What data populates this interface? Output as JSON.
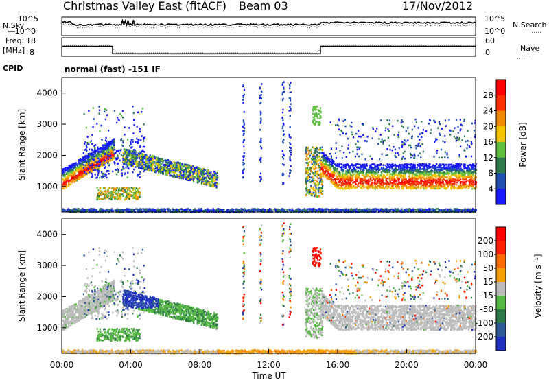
{
  "header": {
    "title": "Christmas Valley East (fitACF)",
    "beam": "Beam 03",
    "date": "17/Nov/2012"
  },
  "strip_panels": {
    "nsky_label": "N.Sky",
    "nsearch_label": "N.Search",
    "noise_ticks": [
      "10^5",
      "10^0"
    ],
    "freq_label_line1": "Freq.",
    "freq_label_line2": "[MHz]",
    "freq_ticks": [
      "18",
      "8"
    ],
    "nave_label": "Nave",
    "nave_ticks": [
      "60",
      "0"
    ],
    "cpid_label": "CPID",
    "cpid_text": "normal (fast) -151 IF"
  },
  "axes": {
    "time_ticks": [
      "00:00",
      "04:00",
      "08:00",
      "12:00",
      "16:00",
      "20:00",
      "00:00"
    ],
    "xlabel": "Time UT",
    "range_ticks": [
      "1000",
      "2000",
      "3000",
      "4000"
    ],
    "ylabel": "Slant Range [km]"
  },
  "colorbars": {
    "power": {
      "label": "Power [dB]",
      "ticks": [
        "4",
        "8",
        "12",
        "16",
        "20",
        "24",
        "28"
      ],
      "colors": [
        "#1a1aff",
        "#1f4fb0",
        "#2f7a4a",
        "#5fbf3f",
        "#f5c400",
        "#f08a00",
        "#ff3000",
        "#ff0000"
      ]
    },
    "velocity": {
      "label": "Velocity [m s⁻¹]",
      "ticks": [
        "200",
        "100",
        "50",
        "15",
        "-15",
        "-50",
        "-100",
        "-200"
      ],
      "colors": [
        "#2030c0",
        "#2f5a9a",
        "#2f7a4a",
        "#55b840",
        "#bcbcbc",
        "#f5a000",
        "#ff6a00",
        "#ff2000",
        "#ff0000"
      ]
    }
  },
  "chart_data": [
    {
      "type": "line",
      "panel": "noise",
      "series": [
        {
          "name": "N.Sky",
          "style": "solid"
        },
        {
          "name": "N.Search",
          "style": "dotted"
        }
      ],
      "scale": "log",
      "ylim_ticks": [
        "10^0",
        "10^5"
      ]
    },
    {
      "type": "line",
      "panel": "frequency",
      "series": [
        {
          "name": "Freq.",
          "style": "solid",
          "x_hours": [
            0,
            2.95,
            2.95,
            15.0,
            15.0,
            24
          ],
          "values_mhz": [
            14.5,
            14.5,
            10.5,
            10.5,
            14.5,
            14.5
          ]
        },
        {
          "name": "Nave",
          "style": "dotted"
        }
      ],
      "ylim": [
        8,
        18
      ]
    },
    {
      "type": "heatmap",
      "panel": "power",
      "xlabel": "Time UT",
      "ylabel": "Slant Range [km]",
      "xlim_hours": [
        0,
        24
      ],
      "ylim_km": [
        180,
        4500
      ],
      "colorbar_label": "Power [dB]",
      "regions": [
        {
          "t": [
            0.0,
            3.0
          ],
          "r": [
            900,
            2400
          ],
          "level": "strong"
        },
        {
          "t": [
            1.5,
            4.8
          ],
          "r": [
            1200,
            3800
          ],
          "level": "weak"
        },
        {
          "t": [
            4.5,
            9.0
          ],
          "r": [
            1000,
            2200
          ],
          "level": "medium"
        },
        {
          "t": [
            2.0,
            4.5
          ],
          "r": [
            600,
            1000
          ],
          "level": "medium"
        },
        {
          "t": [
            14.2,
            15.2
          ],
          "r": [
            700,
            3700
          ],
          "level": "medium"
        },
        {
          "t": [
            15.0,
            24.0
          ],
          "r": [
            900,
            1800
          ],
          "level": "strong"
        },
        {
          "t": [
            0.0,
            24.0
          ],
          "r": [
            200,
            300
          ],
          "level": "weak"
        }
      ]
    },
    {
      "type": "heatmap",
      "panel": "velocity",
      "xlabel": "Time UT",
      "ylabel": "Slant Range [km]",
      "xlim_hours": [
        0,
        24
      ],
      "ylim_km": [
        180,
        4500
      ],
      "colorbar_label": "Velocity [m s⁻¹]",
      "regions": [
        {
          "t": [
            0.0,
            2.8
          ],
          "r": [
            900,
            2400
          ],
          "velocity": "ground (~0)"
        },
        {
          "t": [
            3.0,
            5.5
          ],
          "r": [
            1600,
            2200
          ],
          "velocity": "~150"
        },
        {
          "t": [
            4.5,
            9.0
          ],
          "r": [
            1000,
            2200
          ],
          "velocity": "~30"
        },
        {
          "t": [
            2.0,
            4.5
          ],
          "r": [
            600,
            1000
          ],
          "velocity": "~30"
        },
        {
          "t": [
            14.5,
            15.0
          ],
          "r": [
            3000,
            3600
          ],
          "velocity": "~-200"
        },
        {
          "t": [
            15.5,
            24.0
          ],
          "r": [
            900,
            1800
          ],
          "velocity": "ground (~0)"
        },
        {
          "t": [
            0.0,
            24.0
          ],
          "r": [
            200,
            300
          ],
          "velocity": "~-60"
        }
      ]
    }
  ]
}
